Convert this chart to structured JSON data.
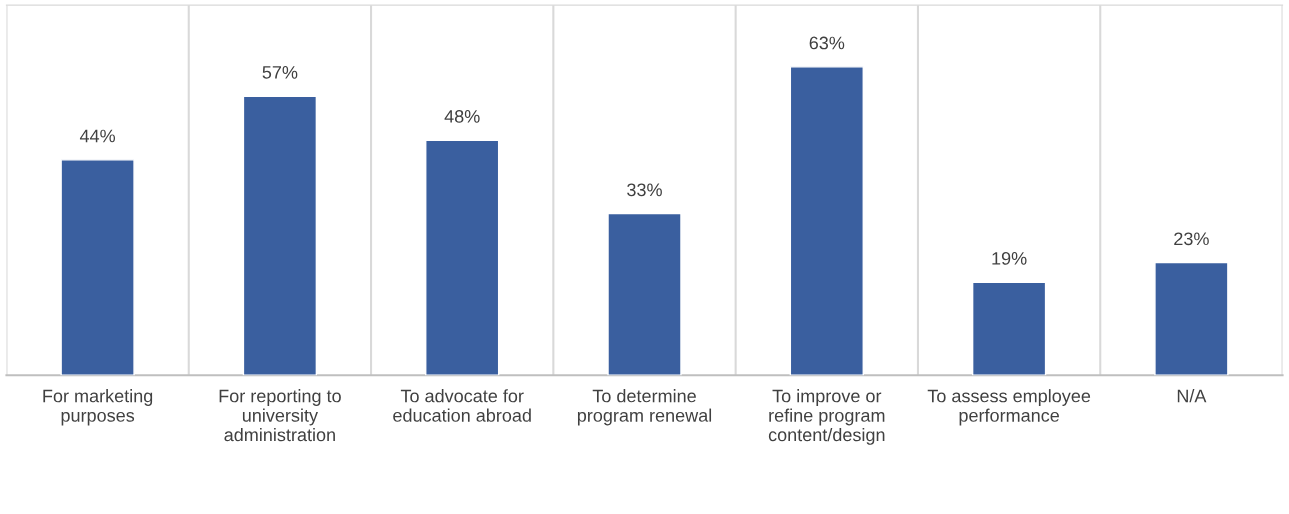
{
  "chart_data": {
    "type": "bar",
    "categories": [
      "For marketing\npurposes",
      "For reporting to\nuniversity\nadministration",
      "To advocate for\neducation abroad",
      "To determine\nprogram renewal",
      "To improve or\nrefine program\ncontent/design",
      "To assess employee\nperformance",
      "N/A"
    ],
    "values": [
      44,
      57,
      48,
      33,
      63,
      19,
      23
    ],
    "value_labels": [
      "44%",
      "57%",
      "48%",
      "33%",
      "63%",
      "19%",
      "23%"
    ],
    "color": "#3a5f9f",
    "grid": "x",
    "legend": false
  }
}
